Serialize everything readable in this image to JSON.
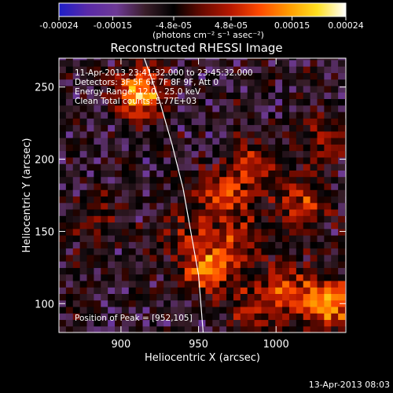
{
  "colorbar": {
    "ticks": [
      "-0.00024",
      "-0.00015",
      "-4.8e-05",
      "4.8e-05",
      "0.00015",
      "0.00024"
    ],
    "tick_values": [
      -0.00024,
      -0.00015,
      -4.8e-05,
      4.8e-05,
      0.00015,
      0.00024
    ],
    "range": [
      -0.00024,
      0.00024
    ],
    "label": "(photons cm⁻² s⁻¹ asec⁻²)",
    "colors": [
      "#1e1ec8",
      "#5a2aa8",
      "#6e3a96",
      "#3a1e2a",
      "#000000",
      "#6a0a00",
      "#b81800",
      "#ff4a00",
      "#ff9a00",
      "#ffe020",
      "#ffffff"
    ]
  },
  "chart_data": {
    "type": "heatmap",
    "title": "Reconstructed RHESSI Image",
    "xlabel": "Heliocentric X (arcsec)",
    "ylabel": "Heliocentric Y (arcsec)",
    "xlim": [
      860,
      1045
    ],
    "ylim": [
      80,
      270
    ],
    "xticks": [
      900,
      950,
      1000
    ],
    "yticks": [
      100,
      150,
      200,
      250
    ],
    "annotations": [
      "11-Apr-2013 23:41:32.000 to 23:45:32.000",
      "Detectors: 3F 5F 6F 7F 8F 9F, Att 0",
      "Energy Range: 12.0 - 25.0 keV",
      "Clean     Total counts: 5.77E+03"
    ],
    "peak_label": "Position of Peak = [952,105]",
    "peak": [
      952,
      105
    ],
    "limb": [
      [
        915,
        270
      ],
      [
        925,
        240
      ],
      [
        933,
        210
      ],
      [
        940,
        180
      ],
      [
        945,
        150
      ],
      [
        950,
        120
      ],
      [
        953,
        80
      ]
    ],
    "sources": [
      {
        "x": 912,
        "y": 245,
        "amp": 0.00024
      },
      {
        "x": 965,
        "y": 175,
        "amp": 0.00013
      },
      {
        "x": 985,
        "y": 195,
        "amp": 0.00012
      },
      {
        "x": 955,
        "y": 125,
        "amp": 0.00018
      },
      {
        "x": 975,
        "y": 145,
        "amp": 0.00012
      },
      {
        "x": 1018,
        "y": 170,
        "amp": 0.00014
      },
      {
        "x": 1035,
        "y": 100,
        "amp": 0.00022
      },
      {
        "x": 1005,
        "y": 110,
        "amp": 0.00014
      },
      {
        "x": 985,
        "y": 95,
        "amp": 0.0001
      },
      {
        "x": 940,
        "y": 150,
        "amp": 8e-05
      },
      {
        "x": 1030,
        "y": 215,
        "amp": 8e-05
      },
      {
        "x": 885,
        "y": 158,
        "amp": 6e-05
      }
    ]
  },
  "footer": "13-Apr-2013 08:03"
}
